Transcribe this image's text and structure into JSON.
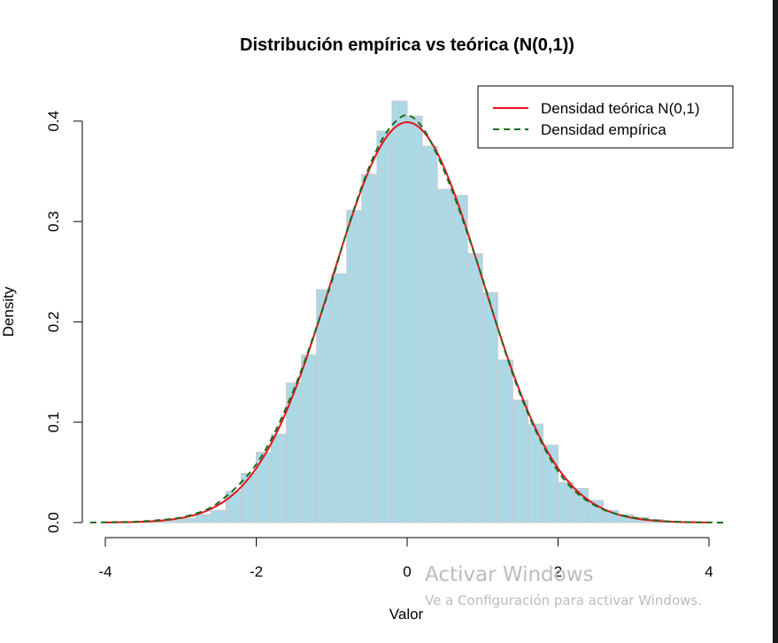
{
  "chart_data": {
    "type": "bar",
    "title": "Distribución empírica vs teórica (N(0,1))",
    "xlabel": "Valor",
    "ylabel": "Density",
    "xlim": [
      -4.35,
      4.35
    ],
    "ylim": [
      0,
      0.42
    ],
    "x_ticks": [
      -4,
      -2,
      0,
      2,
      4
    ],
    "y_ticks": [
      0.0,
      0.1,
      0.2,
      0.3,
      0.4
    ],
    "x_tick_labels": [
      "-4",
      "-2",
      "0",
      "2",
      "4"
    ],
    "y_tick_labels": [
      "0.0",
      "0.1",
      "0.2",
      "0.3",
      "0.4"
    ],
    "grid": false,
    "legend_position": "top-right",
    "bar_fill": "#add8e6",
    "bar_border": "#c8c8c8",
    "histogram": {
      "bin_width": 0.2,
      "bins_left": [
        -3.6,
        -3.4,
        -3.2,
        -3.0,
        -2.8,
        -2.6,
        -2.4,
        -2.2,
        -2.0,
        -1.8,
        -1.6,
        -1.4,
        -1.2,
        -1.0,
        -0.8,
        -0.6,
        -0.4,
        -0.2,
        0.0,
        0.2,
        0.4,
        0.6,
        0.8,
        1.0,
        1.2,
        1.4,
        1.6,
        1.8,
        2.0,
        2.2,
        2.4,
        2.6,
        2.8,
        3.0,
        3.2,
        3.4
      ],
      "densities": [
        0.001,
        0.001,
        0.002,
        0.004,
        0.008,
        0.012,
        0.031,
        0.049,
        0.07,
        0.088,
        0.139,
        0.167,
        0.232,
        0.248,
        0.311,
        0.347,
        0.39,
        0.42,
        0.405,
        0.375,
        0.332,
        0.326,
        0.268,
        0.229,
        0.162,
        0.122,
        0.098,
        0.077,
        0.04,
        0.034,
        0.022,
        0.012,
        0.008,
        0.005,
        0.003,
        0.001
      ]
    },
    "series": [
      {
        "name": "Densidad teórica N(0,1)",
        "color": "#e8141b",
        "style": "solid",
        "x": [
          -4.0,
          -3.8,
          -3.6,
          -3.4,
          -3.2,
          -3.0,
          -2.8,
          -2.6,
          -2.4,
          -2.2,
          -2.0,
          -1.8,
          -1.6,
          -1.4,
          -1.2,
          -1.0,
          -0.8,
          -0.6,
          -0.4,
          -0.2,
          0.0,
          0.2,
          0.4,
          0.6,
          0.8,
          1.0,
          1.2,
          1.4,
          1.6,
          1.8,
          2.0,
          2.2,
          2.4,
          2.6,
          2.8,
          3.0,
          3.2,
          3.4,
          3.6,
          3.8,
          4.0
        ],
        "y": [
          0.0001,
          0.0003,
          0.0006,
          0.0012,
          0.0024,
          0.0044,
          0.0079,
          0.0136,
          0.0224,
          0.0355,
          0.054,
          0.079,
          0.1109,
          0.1497,
          0.1942,
          0.242,
          0.2897,
          0.3332,
          0.3683,
          0.391,
          0.3989,
          0.391,
          0.3683,
          0.3332,
          0.2897,
          0.242,
          0.1942,
          0.1497,
          0.1109,
          0.079,
          0.054,
          0.0355,
          0.0224,
          0.0136,
          0.0079,
          0.0044,
          0.0024,
          0.0012,
          0.0006,
          0.0003,
          0.0001
        ]
      },
      {
        "name": "Densidad empírica",
        "color": "#1a6b1a",
        "style": "dashed",
        "x": [
          -4.2,
          -4.0,
          -3.6,
          -3.2,
          -3.0,
          -2.8,
          -2.6,
          -2.4,
          -2.2,
          -2.0,
          -1.8,
          -1.6,
          -1.4,
          -1.2,
          -1.0,
          -0.8,
          -0.6,
          -0.4,
          -0.2,
          0.0,
          0.2,
          0.4,
          0.6,
          0.8,
          1.0,
          1.2,
          1.4,
          1.6,
          1.8,
          2.0,
          2.2,
          2.4,
          2.6,
          2.8,
          3.0,
          3.2,
          3.4,
          3.6,
          3.8,
          4.0,
          4.2
        ],
        "y": [
          0.0,
          0.0003,
          0.0008,
          0.003,
          0.005,
          0.009,
          0.015,
          0.026,
          0.04,
          0.058,
          0.083,
          0.115,
          0.152,
          0.195,
          0.24,
          0.29,
          0.335,
          0.372,
          0.396,
          0.406,
          0.394,
          0.366,
          0.33,
          0.288,
          0.243,
          0.194,
          0.148,
          0.109,
          0.077,
          0.051,
          0.033,
          0.021,
          0.013,
          0.008,
          0.005,
          0.003,
          0.0015,
          0.0008,
          0.0003,
          0.0001,
          0.0
        ]
      }
    ]
  },
  "watermark": {
    "title": "Activar Windows",
    "subtitle": "Ve a Configuración para activar Windows."
  }
}
